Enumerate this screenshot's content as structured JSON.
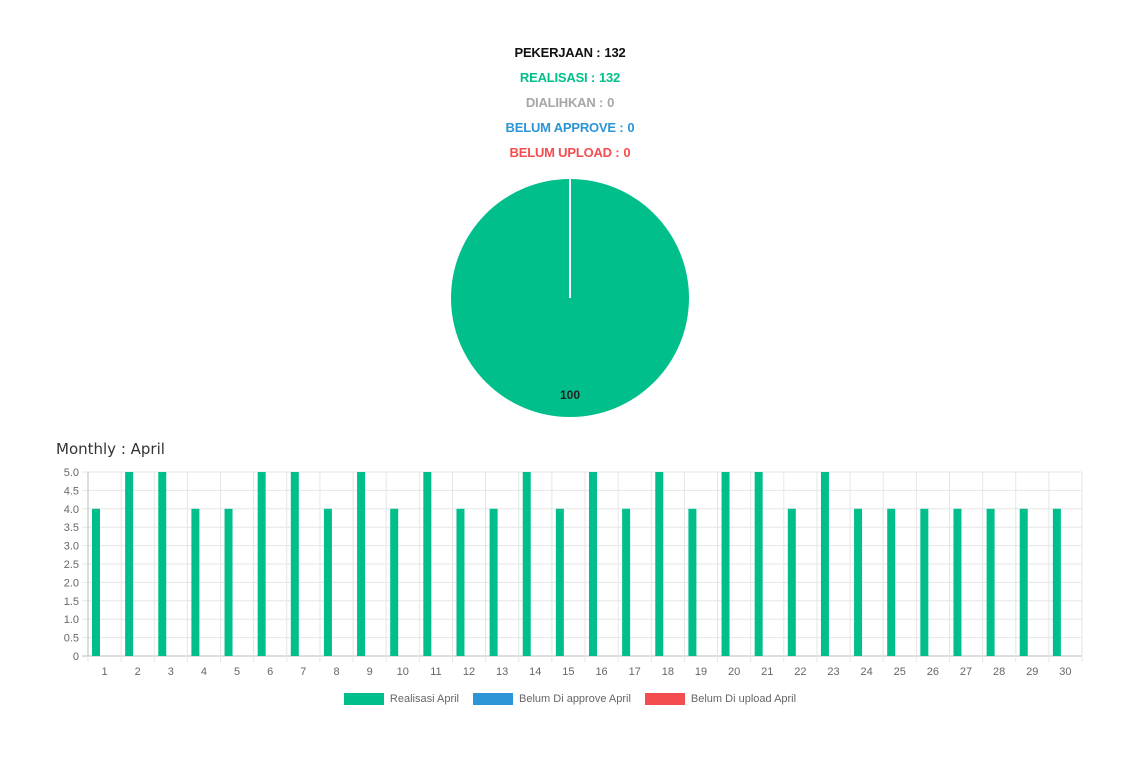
{
  "stats": [
    {
      "label": "PEKERJAAN :",
      "value": "132",
      "color": "#111111"
    },
    {
      "label": "REALISASI :",
      "value": "132",
      "color": "#00bf8a"
    },
    {
      "label": "DIALIHKAN :",
      "value": "0",
      "color": "#a6a6a6"
    },
    {
      "label": "BELUM APPROVE :",
      "value": "0",
      "color": "#2b95d6"
    },
    {
      "label": "BELUM UPLOAD :",
      "value": "0",
      "color": "#f44d50"
    }
  ],
  "monthly_title": "Monthly : April",
  "chart_data": [
    {
      "type": "pie",
      "slices": [
        {
          "value": 100,
          "color": "#00bf8a"
        }
      ],
      "data_labels": [
        "100"
      ]
    },
    {
      "type": "bar",
      "categories": [
        "1",
        "2",
        "3",
        "4",
        "5",
        "6",
        "7",
        "8",
        "9",
        "10",
        "11",
        "12",
        "13",
        "14",
        "15",
        "16",
        "17",
        "18",
        "19",
        "20",
        "21",
        "22",
        "23",
        "24",
        "25",
        "26",
        "27",
        "28",
        "29",
        "30"
      ],
      "series": [
        {
          "name": "Realisasi April",
          "color": "#00bf8a",
          "values": [
            4,
            5,
            5,
            4,
            4,
            5,
            5,
            4,
            5,
            4,
            5,
            4,
            4,
            5,
            4,
            5,
            4,
            5,
            4,
            5,
            5,
            4,
            5,
            4,
            4,
            4,
            4,
            4,
            4,
            4
          ]
        },
        {
          "name": "Belum Di approve April",
          "color": "#2b95d6",
          "values": [
            0,
            0,
            0,
            0,
            0,
            0,
            0,
            0,
            0,
            0,
            0,
            0,
            0,
            0,
            0,
            0,
            0,
            0,
            0,
            0,
            0,
            0,
            0,
            0,
            0,
            0,
            0,
            0,
            0,
            0
          ]
        },
        {
          "name": "Belum Di upload April",
          "color": "#f44d50",
          "values": [
            0,
            0,
            0,
            0,
            0,
            0,
            0,
            0,
            0,
            0,
            0,
            0,
            0,
            0,
            0,
            0,
            0,
            0,
            0,
            0,
            0,
            0,
            0,
            0,
            0,
            0,
            0,
            0,
            0,
            0
          ]
        }
      ],
      "y_ticks": [
        "0",
        "0.5",
        "1.0",
        "1.5",
        "2.0",
        "2.5",
        "3.0",
        "3.5",
        "4.0",
        "4.5",
        "5.0"
      ],
      "ylim": [
        0,
        5
      ],
      "grid": true,
      "legend": "bottom-center"
    }
  ]
}
